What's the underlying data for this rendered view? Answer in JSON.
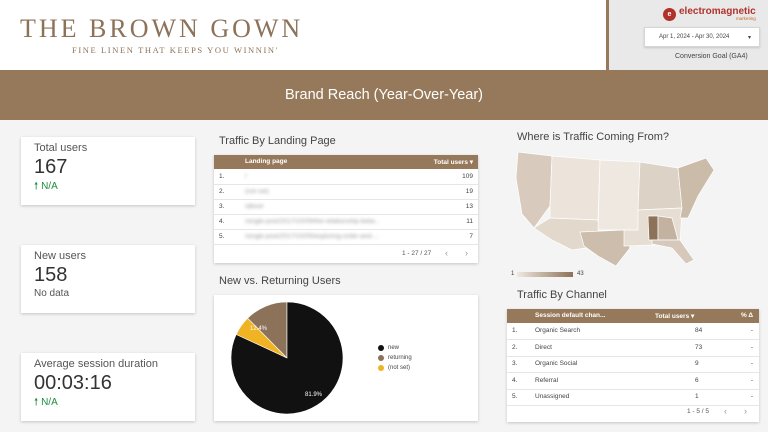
{
  "header": {
    "brand_title": "THE  BROWN  GOWN",
    "brand_tagline": "FINE LINEN THAT KEEPS YOU WINNIN'",
    "logo_text": "electromagnetic",
    "logo_sub": "marketing",
    "date_range": "Apr 1, 2024 - Apr 30, 2024",
    "date_caret": "▾",
    "conversion_goal": "Conversion Goal (GA4)"
  },
  "banner": {
    "title": "Brand Reach (Year-Over-Year)"
  },
  "kpis": {
    "total_users": {
      "label": "Total users",
      "value": "167",
      "delta": "N/A"
    },
    "new_users": {
      "label": "New users",
      "value": "158",
      "delta": "No data"
    },
    "avg_session": {
      "label": "Average session duration",
      "value": "00:03:16",
      "delta": "N/A"
    }
  },
  "landing": {
    "title": "Traffic By Landing Page",
    "col_page": "Landing page",
    "col_users": "Total users ▾",
    "rows": [
      {
        "num": "1.",
        "page": "/",
        "users": "109"
      },
      {
        "num": "2.",
        "page": "(not set)",
        "users": "19"
      },
      {
        "num": "3.",
        "page": "/about",
        "users": "13"
      },
      {
        "num": "4.",
        "page": "/single-post/2017/10/09/the-relationship-betw...",
        "users": "11"
      },
      {
        "num": "5.",
        "page": "/single-post/2017/10/05/exploring-order-and-...",
        "users": "7"
      }
    ],
    "pager": "1 - 27 / 27",
    "prev": "‹",
    "next": "›"
  },
  "new_vs_returning": {
    "title": "New vs. Returning Users",
    "legend": [
      {
        "label": "new",
        "color": "#111111"
      },
      {
        "label": "returning",
        "color": "#8c7258"
      },
      {
        "label": "(not set)",
        "color": "#f0b323"
      }
    ],
    "label_new": "81.9%",
    "label_returning": "12.4%"
  },
  "chart_data": {
    "type": "pie",
    "categories": [
      "new",
      "returning",
      "(not set)"
    ],
    "values": [
      81.9,
      12.4,
      5.7
    ]
  },
  "map": {
    "title": "Where is Traffic Coming From?",
    "scale_min": "1",
    "scale_max": "43"
  },
  "channel": {
    "title": "Traffic By Channel",
    "col_channel": "Session default chan...",
    "col_users": "Total users ▾",
    "col_delta": "% Δ",
    "rows": [
      {
        "num": "1.",
        "channel": "Organic Search",
        "users": "84",
        "delta": "-"
      },
      {
        "num": "2.",
        "channel": "Direct",
        "users": "73",
        "delta": "-"
      },
      {
        "num": "3.",
        "channel": "Organic Social",
        "users": "9",
        "delta": "-"
      },
      {
        "num": "4.",
        "channel": "Referral",
        "users": "6",
        "delta": "-"
      },
      {
        "num": "5.",
        "channel": "Unassigned",
        "users": "1",
        "delta": "-"
      }
    ],
    "pager": "1 - 5 / 5",
    "prev": "‹",
    "next": "›"
  }
}
